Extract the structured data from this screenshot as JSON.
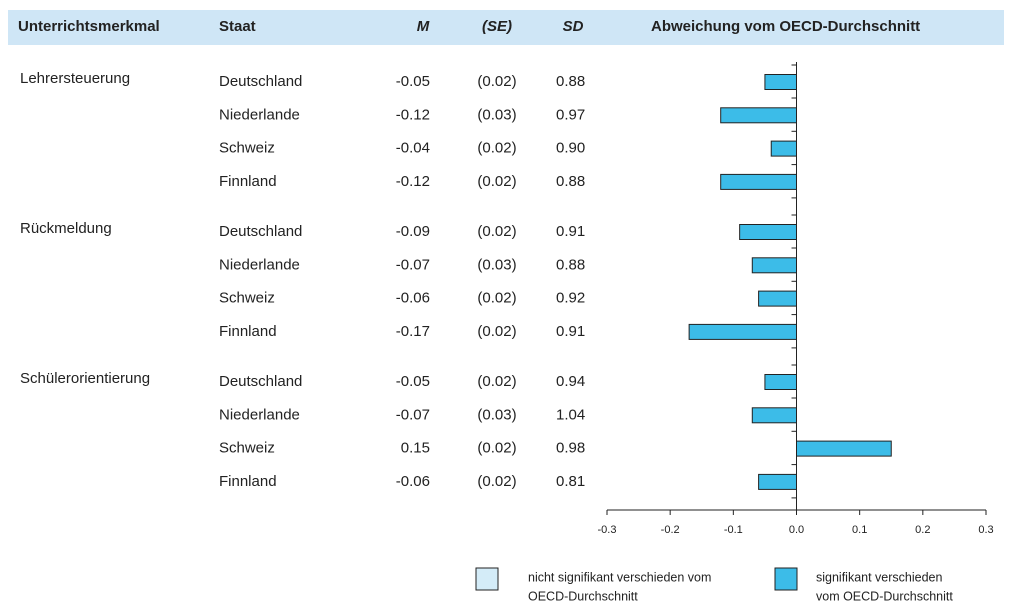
{
  "chart_data": {
    "type": "bar",
    "orientation": "horizontal",
    "headers": [
      "Unterrichtsmerkmal",
      "Staat",
      "M",
      "(SE)",
      "SD",
      "Abweichung vom OECD-Durchschnitt"
    ],
    "groups": [
      {
        "name": "Lehrersteuerung",
        "categories": [
          "Deutschland",
          "Niederlande",
          "Schweiz",
          "Finnland"
        ],
        "values": [
          -0.05,
          -0.12,
          -0.04,
          -0.12
        ],
        "se": [
          "(0.02)",
          "(0.03)",
          "(0.02)",
          "(0.02)"
        ],
        "sd": [
          "0.88",
          "0.97",
          "0.90",
          "0.88"
        ]
      },
      {
        "name": "Rückmeldung",
        "categories": [
          "Deutschland",
          "Niederlande",
          "Schweiz",
          "Finnland"
        ],
        "values": [
          -0.09,
          -0.07,
          -0.06,
          -0.17
        ],
        "se": [
          "(0.02)",
          "(0.03)",
          "(0.02)",
          "(0.02)"
        ],
        "sd": [
          "0.91",
          "0.88",
          "0.92",
          "0.91"
        ]
      },
      {
        "name": "Schülerorientierung",
        "categories": [
          "Deutschland",
          "Niederlande",
          "Schweiz",
          "Finnland"
        ],
        "values": [
          -0.05,
          -0.07,
          0.15,
          -0.06
        ],
        "se": [
          "(0.02)",
          "(0.03)",
          "(0.02)",
          "(0.02)"
        ],
        "sd": [
          "0.94",
          "1.04",
          "0.98",
          "0.81"
        ]
      }
    ],
    "xlim": [
      -0.3,
      0.3
    ],
    "xticks": [
      -0.3,
      -0.2,
      -0.1,
      {
        "value": 0,
        "label": "0.0"
      },
      0.1,
      0.2,
      0.3
    ],
    "legend": [
      {
        "name": "nicht signifikant verschieden vom OECD-Durchschnitt",
        "lines": [
          "nicht signifikant verschieden vom",
          "OECD-Durchschnitt"
        ],
        "color": "#d4ecf8"
      },
      {
        "name": "signifikant verschieden vom OECD-Durchschnitt",
        "lines": [
          "signifikant verschieden",
          "vom OECD-Durchschnitt"
        ],
        "color": "#3cbce8"
      }
    ],
    "bar_legend_index": 1
  }
}
